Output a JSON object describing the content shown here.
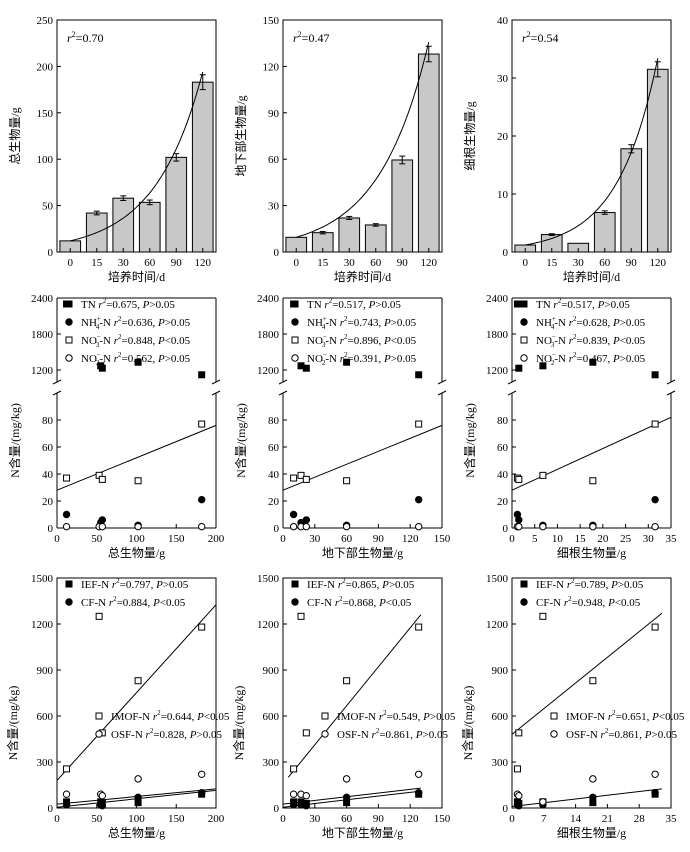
{
  "chart_data": [
    {
      "type": "bar",
      "categories": [
        "0",
        "15",
        "30",
        "60",
        "90",
        "120"
      ],
      "values": [
        12,
        42,
        58,
        53.5,
        102,
        183
      ],
      "errors": [
        0,
        2,
        2.5,
        2.5,
        4,
        8
      ],
      "xlabel": "培养时间/d",
      "ylabel": "总生物量/g",
      "ylim": [
        0,
        250
      ],
      "yticks": [
        "0",
        "50",
        "100",
        "150",
        "200",
        "250"
      ],
      "annotation": {
        "pre": "r",
        "sup": "2",
        "post": "=0.70"
      },
      "trend": "exponential"
    },
    {
      "type": "bar",
      "categories": [
        "0",
        "15",
        "30",
        "60",
        "90",
        "120"
      ],
      "values": [
        9.5,
        12.5,
        22,
        17.5,
        59.5,
        128
      ],
      "errors": [
        0,
        0.8,
        1,
        0.8,
        2.5,
        5
      ],
      "xlabel": "培养时间/d",
      "ylabel": "地下部生物量/g",
      "ylim": [
        0,
        150
      ],
      "yticks": [
        "0",
        "30",
        "60",
        "90",
        "120",
        "150"
      ],
      "annotation": {
        "pre": "r",
        "sup": "2",
        "post": "=0.47"
      },
      "trend": "exponential"
    },
    {
      "type": "bar",
      "categories": [
        "0",
        "15",
        "30",
        "60",
        "90",
        "120"
      ],
      "values": [
        1.2,
        3.0,
        1.5,
        6.8,
        17.8,
        31.5
      ],
      "errors": [
        0,
        0.15,
        0,
        0.3,
        0.7,
        1.3
      ],
      "xlabel": "培养时间/d",
      "ylabel": "细根生物量/g",
      "ylim": [
        0,
        40
      ],
      "yticks": [
        "0",
        "10",
        "20",
        "30",
        "40"
      ],
      "annotation": {
        "pre": "r",
        "sup": "2",
        "post": "=0.54"
      },
      "trend": "exponential"
    },
    {
      "type": "scatter",
      "xlabel": "总生物量/g",
      "ylabel": "N含量/(mg/kg)",
      "xlim": [
        0,
        200
      ],
      "xticks": [
        "0",
        "50",
        "100",
        "150",
        "200"
      ],
      "yticks_low": [
        "0",
        "20",
        "40",
        "60",
        "80"
      ],
      "yticks_high": [
        "1200",
        "1800",
        "2400"
      ],
      "axis_break": [
        100,
        1000
      ],
      "series": [
        {
          "name": "TN",
          "sub": "",
          "sup": "",
          "r2": "0.675",
          "p": "P>0.05",
          "x": [
            12,
            55,
            57,
            102,
            182
          ],
          "y": [
            2300,
            1270,
            1230,
            1330,
            1120
          ]
        },
        {
          "name": "NH",
          "sub": "4",
          "sup": "+",
          "r2": "0.636",
          "p": "P>0.05",
          "x": [
            12,
            55,
            57,
            102,
            182
          ],
          "y": [
            10,
            4,
            6,
            2,
            21
          ]
        },
        {
          "name": "NO",
          "sub": "3",
          "sup": "−",
          "r2": "0.848",
          "p": "P<0.05",
          "x": [
            12,
            53,
            57,
            102,
            182
          ],
          "y": [
            37,
            39,
            36,
            35,
            77
          ]
        },
        {
          "name": "NO",
          "sub": "2",
          "sup": "−",
          "r2": "0.562",
          "p": "P>0.05",
          "x": [
            12,
            53,
            57,
            102,
            182
          ],
          "y": [
            1,
            1,
            1,
            1,
            1
          ]
        }
      ],
      "fit": {
        "x": [
          0,
          200
        ],
        "y": [
          28,
          76
        ]
      }
    },
    {
      "type": "scatter",
      "xlabel": "地下部生物量/g",
      "ylabel": "N含量/(mg/kg)",
      "xlim": [
        0,
        150
      ],
      "xticks": [
        "0",
        "30",
        "60",
        "90",
        "120",
        "150"
      ],
      "yticks_low": [
        "0",
        "20",
        "40",
        "60",
        "80"
      ],
      "yticks_high": [
        "1200",
        "1800",
        "2400"
      ],
      "axis_break": [
        100,
        1000
      ],
      "series": [
        {
          "name": "TN",
          "sub": "",
          "sup": "",
          "r2": "0.517",
          "p": "P>0.05",
          "x": [
            10,
            17,
            22,
            60,
            128
          ],
          "y": [
            2300,
            1270,
            1230,
            1330,
            1120
          ]
        },
        {
          "name": "NH",
          "sub": "4",
          "sup": "+",
          "r2": "0.743",
          "p": "P>0.05",
          "x": [
            10,
            17,
            22,
            60,
            128
          ],
          "y": [
            10,
            4,
            6,
            2,
            21
          ]
        },
        {
          "name": "NO",
          "sub": "3",
          "sup": "−",
          "r2": "0.896",
          "p": "P<0.05",
          "x": [
            10,
            17,
            22,
            60,
            128
          ],
          "y": [
            37,
            39,
            36,
            35,
            77
          ]
        },
        {
          "name": "NO",
          "sub": "2",
          "sup": "−",
          "r2": "0.391",
          "p": "P>0.05",
          "x": [
            10,
            17,
            22,
            60,
            128
          ],
          "y": [
            1,
            1,
            1,
            1,
            1
          ]
        }
      ],
      "fit": {
        "x": [
          0,
          150
        ],
        "y": [
          28,
          76
        ]
      }
    },
    {
      "type": "scatter",
      "xlabel": "细根生物量/g",
      "ylabel": "N含量/(mg/kg)",
      "xlim": [
        0,
        35
      ],
      "xticks": [
        "0",
        "5",
        "10",
        "15",
        "20",
        "25",
        "30",
        "35"
      ],
      "yticks_low": [
        "0",
        "20",
        "40",
        "60",
        "80"
      ],
      "yticks_high": [
        "1200",
        "1800",
        "2400"
      ],
      "axis_break": [
        100,
        1000
      ],
      "series": [
        {
          "name": "TN",
          "sub": "",
          "sup": "",
          "r2": "0.517",
          "p": "P>0.05",
          "x": [
            1.2,
            1.5,
            6.8,
            17.8,
            31.5
          ],
          "y": [
            2300,
            1230,
            1270,
            1330,
            1120
          ]
        },
        {
          "name": "NH",
          "sub": "4",
          "sup": "+",
          "r2": "0.628",
          "p": "P>0.05",
          "x": [
            1.2,
            1.5,
            6.8,
            17.8,
            31.5
          ],
          "y": [
            10,
            6,
            2,
            2,
            21
          ]
        },
        {
          "name": "NO",
          "sub": "3",
          "sup": "−",
          "r2": "0.839",
          "p": "P<0.05",
          "x": [
            1.2,
            1.5,
            6.8,
            17.8,
            31.5
          ],
          "y": [
            37,
            36,
            39,
            35,
            77
          ]
        },
        {
          "name": "NO",
          "sub": "2",
          "sup": "−",
          "r2": "0.467",
          "p": "P>0.05",
          "x": [
            1.2,
            1.5,
            6.8,
            17.8,
            31.5
          ],
          "y": [
            1,
            1,
            1,
            1,
            1
          ]
        }
      ],
      "fit": {
        "x": [
          0,
          35
        ],
        "y": [
          28,
          82
        ]
      }
    },
    {
      "type": "scatter",
      "xlabel": "总生物量/g",
      "ylabel": "N含量/(mg/kg)",
      "xlim": [
        0,
        200
      ],
      "ylim": [
        0,
        1500
      ],
      "xticks": [
        "0",
        "50",
        "100",
        "150",
        "200"
      ],
      "yticks": [
        "0",
        "300",
        "600",
        "900",
        "1200",
        "1500"
      ],
      "series": [
        {
          "name": "IEF-N",
          "r2": "0.797",
          "p": "P>0.05",
          "x": [
            12,
            55,
            57,
            102,
            182
          ],
          "y": [
            40,
            40,
            30,
            35,
            90
          ]
        },
        {
          "name": "CF-N",
          "r2": "0.884",
          "p": "P<0.05",
          "x": [
            12,
            55,
            57,
            102,
            182
          ],
          "y": [
            20,
            20,
            15,
            70,
            100
          ]
        },
        {
          "name": "IMOF-N",
          "r2": "0.644",
          "p": "P<0.05",
          "x": [
            12,
            53,
            57,
            102,
            182
          ],
          "y": [
            255,
            1250,
            490,
            830,
            1180
          ]
        },
        {
          "name": "OSF-N",
          "r2": "0.828",
          "p": "P>0.05",
          "x": [
            12,
            55,
            57,
            102,
            182
          ],
          "y": [
            90,
            90,
            80,
            190,
            220
          ]
        }
      ],
      "fits": [
        {
          "x": [
            0,
            200
          ],
          "y": [
            180,
            1325
          ]
        },
        {
          "x": [
            0,
            200
          ],
          "y": [
            25,
            125
          ]
        },
        {
          "x": [
            0,
            200
          ],
          "y": [
            5,
            115
          ]
        }
      ]
    },
    {
      "type": "scatter",
      "xlabel": "地下部生物量/g",
      "ylabel": "N含量/(mg/kg)",
      "xlim": [
        0,
        150
      ],
      "ylim": [
        0,
        1500
      ],
      "xticks": [
        "0",
        "30",
        "60",
        "90",
        "120",
        "150"
      ],
      "yticks": [
        "0",
        "300",
        "600",
        "900",
        "1200",
        "1500"
      ],
      "series": [
        {
          "name": "IEF-N",
          "r2": "0.865",
          "p": "P>0.05",
          "x": [
            10,
            17,
            22,
            60,
            128
          ],
          "y": [
            40,
            40,
            30,
            35,
            90
          ]
        },
        {
          "name": "CF-N",
          "r2": "0.868",
          "p": "P<0.05",
          "x": [
            10,
            17,
            22,
            60,
            128
          ],
          "y": [
            20,
            20,
            15,
            70,
            100
          ]
        },
        {
          "name": "IMOF-N",
          "r2": "0.549",
          "p": "P>0.05",
          "x": [
            10,
            17,
            22,
            60,
            128
          ],
          "y": [
            255,
            1250,
            490,
            830,
            1180
          ]
        },
        {
          "name": "OSF-N",
          "r2": "0.861",
          "p": "P>0.05",
          "x": [
            10,
            17,
            22,
            60,
            128
          ],
          "y": [
            90,
            90,
            80,
            190,
            220
          ]
        }
      ],
      "fits": [
        {
          "x": [
            5,
            130
          ],
          "y": [
            200,
            1260
          ]
        },
        {
          "x": [
            0,
            130
          ],
          "y": [
            25,
            130
          ]
        },
        {
          "x": [
            0,
            130
          ],
          "y": [
            5,
            110
          ]
        }
      ]
    },
    {
      "type": "scatter",
      "xlabel": "细根生物量/g",
      "ylabel": "N含量/(mg/kg)",
      "xlim": [
        0,
        35
      ],
      "ylim": [
        0,
        1500
      ],
      "xticks": [
        "0",
        "7",
        "14",
        "21",
        "28",
        "35"
      ],
      "yticks": [
        "0",
        "300",
        "600",
        "900",
        "1200",
        "1500"
      ],
      "series": [
        {
          "name": "IEF-N",
          "r2": "0.789",
          "p": "P>0.05",
          "x": [
            1.2,
            1.5,
            6.8,
            17.8,
            31.5
          ],
          "y": [
            40,
            30,
            40,
            35,
            90
          ]
        },
        {
          "name": "CF-N",
          "r2": "0.948",
          "p": "P<0.05",
          "x": [
            1.2,
            1.5,
            6.8,
            17.8,
            31.5
          ],
          "y": [
            20,
            15,
            20,
            70,
            100
          ]
        },
        {
          "name": "IMOF-N",
          "r2": "0.651",
          "p": "P<0.05",
          "x": [
            1.2,
            1.5,
            6.8,
            17.8,
            31.5
          ],
          "y": [
            255,
            490,
            1250,
            830,
            1180
          ]
        },
        {
          "name": "OSF-N",
          "r2": "0.861",
          "p": "P>0.05",
          "x": [
            1.2,
            1.5,
            6.8,
            17.8,
            31.5
          ],
          "y": [
            90,
            80,
            40,
            190,
            220
          ]
        }
      ],
      "fits": [
        {
          "x": [
            0,
            33
          ],
          "y": [
            480,
            1270
          ]
        },
        {
          "x": [
            0,
            33
          ],
          "y": [
            10,
            125
          ]
        }
      ]
    }
  ]
}
